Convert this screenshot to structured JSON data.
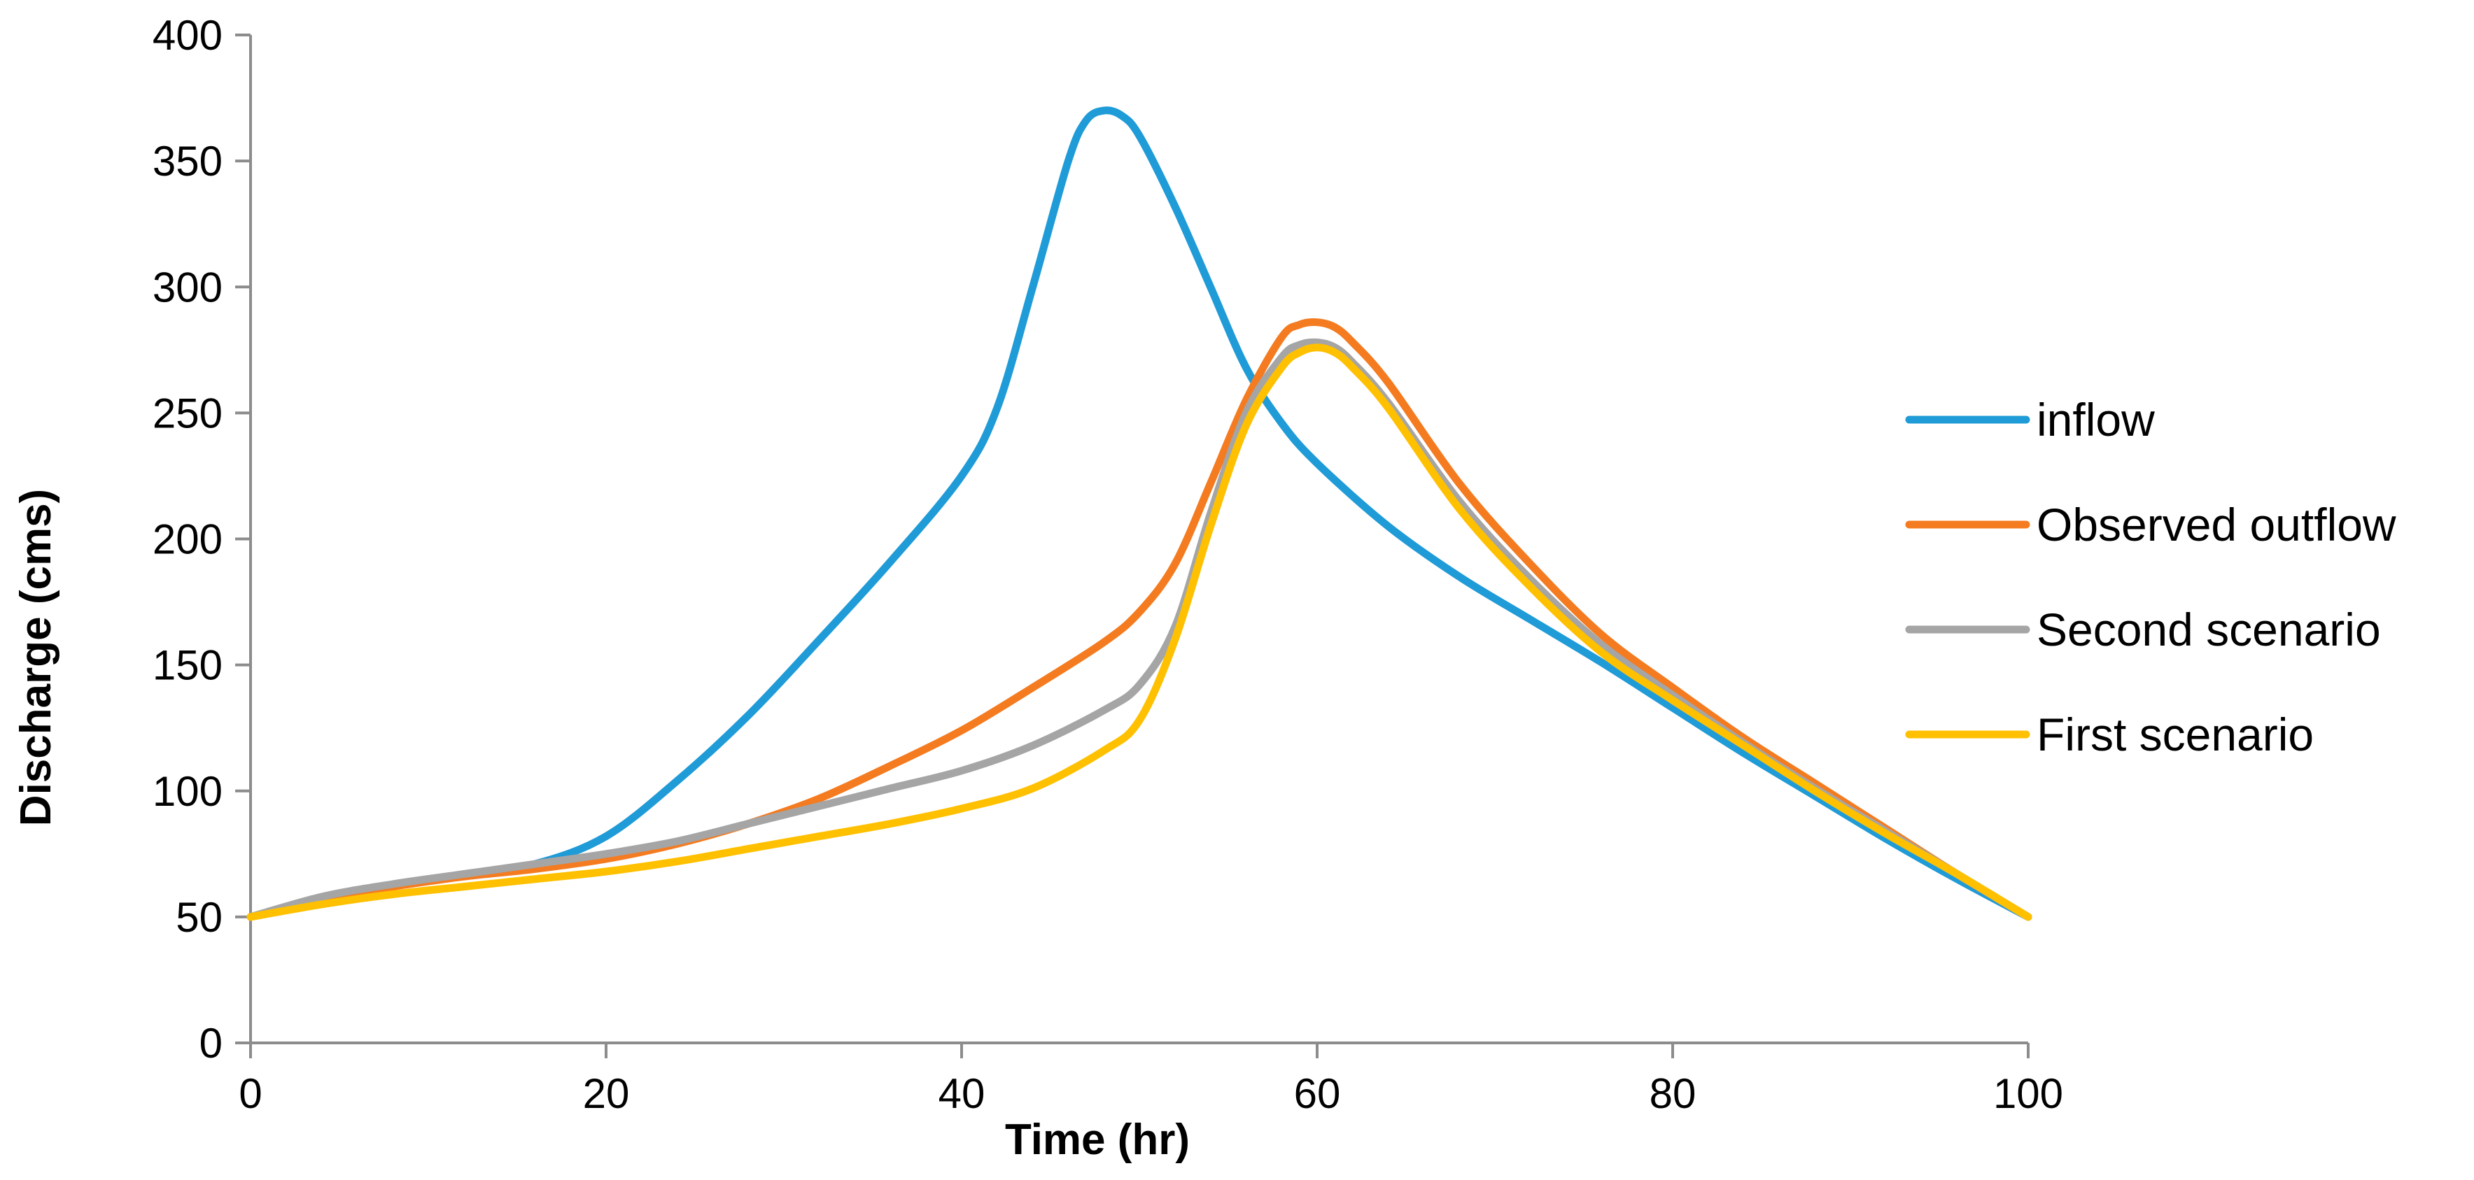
{
  "chart_data": {
    "type": "line",
    "title": "",
    "xlabel": "Time (hr)",
    "ylabel": "Discharge (cms)",
    "xlim": [
      0,
      100
    ],
    "ylim": [
      0,
      400
    ],
    "xticks": [
      0,
      20,
      40,
      60,
      80,
      100
    ],
    "yticks": [
      0,
      50,
      100,
      150,
      200,
      250,
      300,
      350,
      400
    ],
    "grid": false,
    "legend_position": "right",
    "series": [
      {
        "name": "inflow",
        "color": "#1F9BD7",
        "x": [
          0,
          4,
          8,
          12,
          16,
          20,
          24,
          28,
          32,
          36,
          40,
          42,
          44,
          46,
          47,
          48,
          49,
          50,
          52,
          54,
          56,
          58,
          60,
          64,
          68,
          72,
          76,
          80,
          84,
          88,
          92,
          96,
          100
        ],
        "y": [
          50,
          56,
          62,
          67,
          71,
          82,
          104,
          130,
          160,
          191,
          225,
          252,
          300,
          350,
          366,
          370,
          368,
          360,
          332,
          300,
          268,
          246,
          230,
          205,
          185,
          168,
          151,
          133,
          115,
          98,
          81,
          65,
          50
        ]
      },
      {
        "name": "Observed outflow",
        "color": "#F47B20",
        "x": [
          0,
          4,
          8,
          12,
          16,
          20,
          24,
          28,
          32,
          36,
          40,
          44,
          48,
          50,
          52,
          54,
          56,
          58,
          59,
          60,
          61,
          62,
          64,
          68,
          72,
          76,
          80,
          84,
          88,
          92,
          96,
          100
        ],
        "y": [
          50,
          57,
          62,
          66,
          69,
          73,
          79,
          87,
          97,
          110,
          124,
          141,
          159,
          171,
          190,
          222,
          255,
          280,
          285,
          286,
          284,
          278,
          262,
          222,
          190,
          162,
          141,
          121,
          103,
          85,
          67,
          50
        ]
      },
      {
        "name": "Second scenario",
        "color": "#A5A5A5",
        "x": [
          0,
          4,
          8,
          12,
          16,
          20,
          24,
          28,
          32,
          36,
          40,
          44,
          48,
          50,
          52,
          54,
          56,
          58,
          59,
          60,
          61,
          62,
          64,
          68,
          72,
          76,
          80,
          84,
          88,
          92,
          96,
          100
        ],
        "y": [
          50,
          58,
          63,
          67,
          71,
          75,
          80,
          87,
          94,
          101,
          108,
          118,
          132,
          142,
          165,
          210,
          250,
          272,
          277,
          278,
          276,
          270,
          254,
          215,
          184,
          158,
          138,
          119,
          101,
          84,
          67,
          50
        ]
      },
      {
        "name": "First scenario",
        "color": "#FFC000",
        "x": [
          0,
          4,
          8,
          12,
          16,
          20,
          24,
          28,
          32,
          36,
          40,
          44,
          48,
          50,
          52,
          54,
          56,
          58,
          59,
          60,
          61,
          62,
          64,
          68,
          72,
          76,
          80,
          84,
          88,
          92,
          96,
          100
        ],
        "y": [
          50,
          55,
          59,
          62,
          65,
          68,
          72,
          77,
          82,
          87,
          93,
          101,
          116,
          128,
          160,
          205,
          245,
          268,
          274,
          276,
          274,
          268,
          252,
          212,
          181,
          155,
          136,
          118,
          100,
          83,
          67,
          50
        ]
      }
    ]
  }
}
